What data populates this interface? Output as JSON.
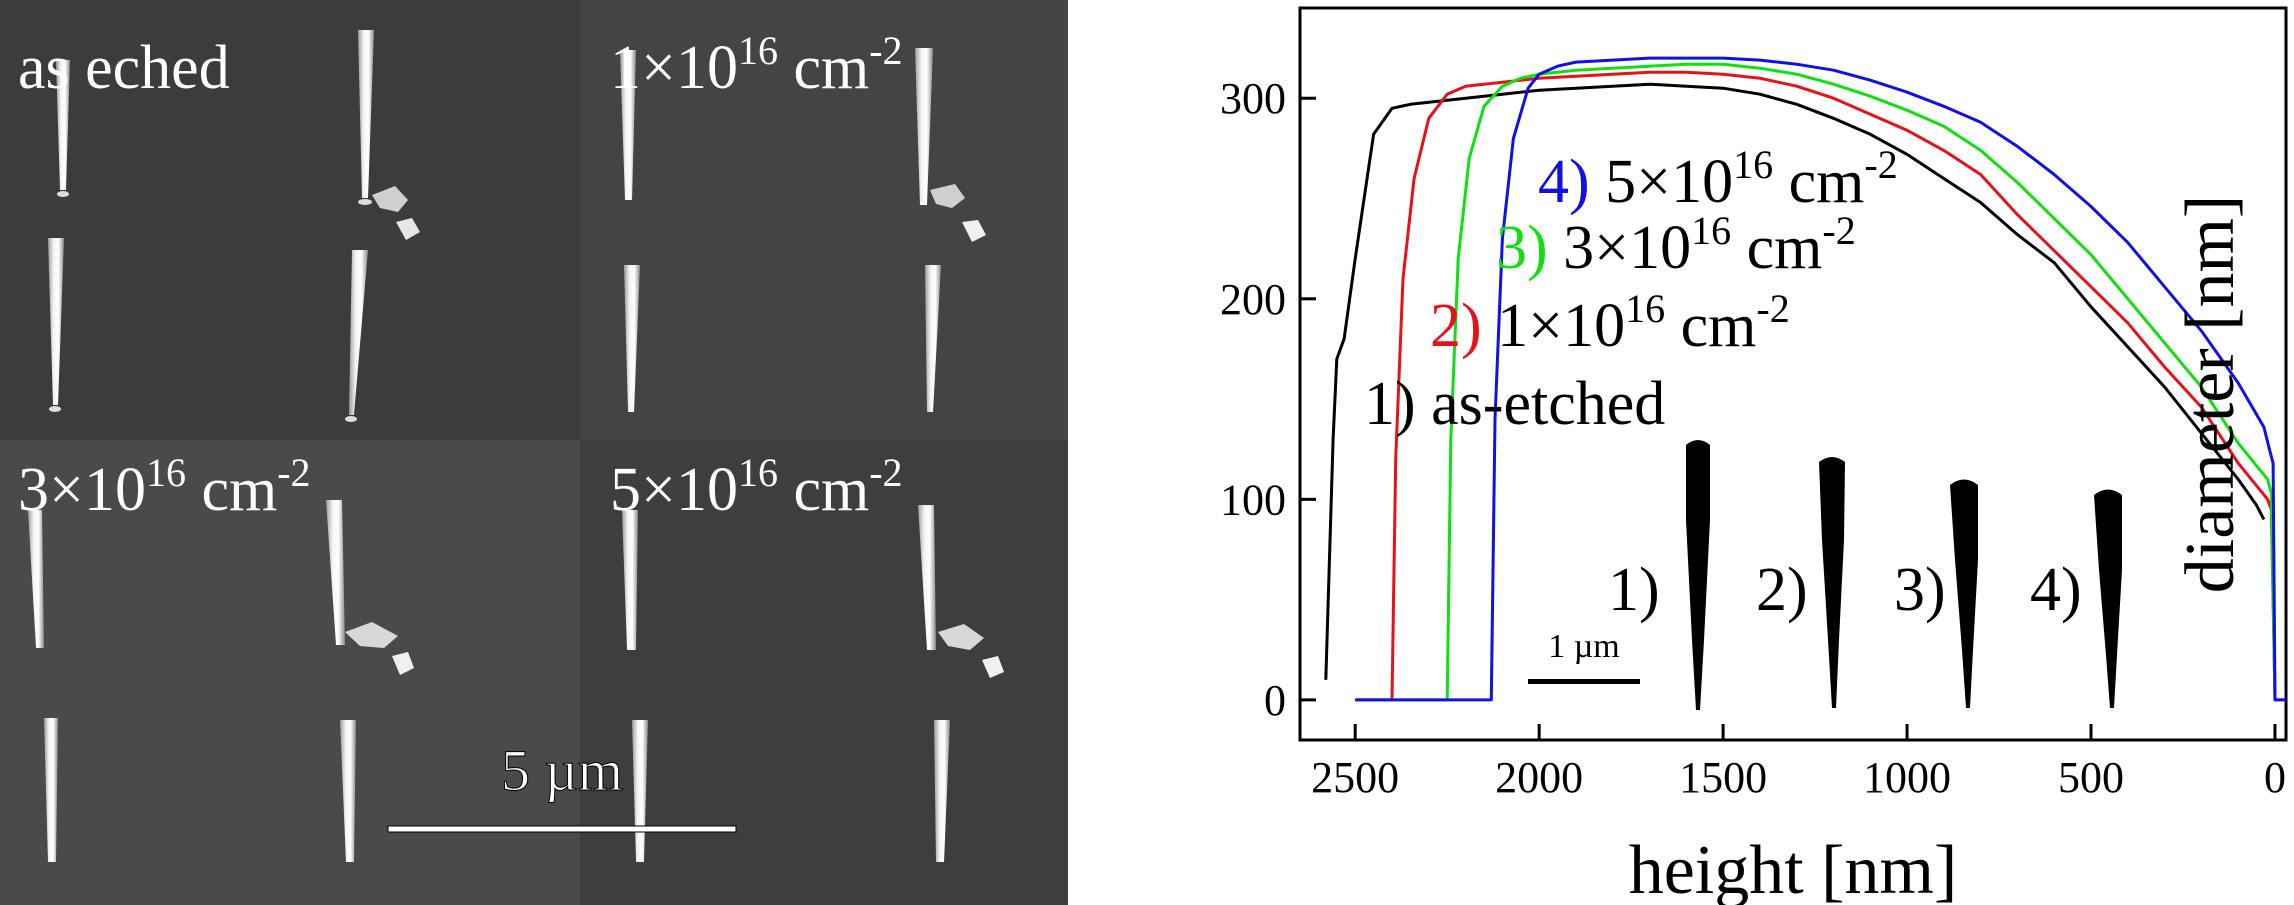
{
  "sem_panels": {
    "scale_bar_label": "5 µm",
    "panels": [
      {
        "label_main": "as eched",
        "label_sup": ""
      },
      {
        "label_main": "1×10",
        "label_sup": "16",
        "label_unit": " cm",
        "label_unit_sup": "-2"
      },
      {
        "label_main": "3×10",
        "label_sup": "16",
        "label_unit": " cm",
        "label_unit_sup": "-2"
      },
      {
        "label_main": "5×10",
        "label_sup": "16",
        "label_unit": " cm",
        "label_unit_sup": "-2"
      }
    ]
  },
  "chart_data": {
    "type": "line",
    "xlabel": "height [nm]",
    "ylabel": "diameter [nm]",
    "xlim": [
      2650,
      -30
    ],
    "ylim": [
      -20,
      345
    ],
    "x_reversed": true,
    "xticks": [
      2500,
      2000,
      1500,
      1000,
      500,
      0
    ],
    "yticks": [
      0,
      100,
      200,
      300
    ],
    "grid": false,
    "series": [
      {
        "name": "1) as-etched",
        "color": "#000000",
        "label_num": "1)",
        "label_text": " as-etched",
        "x": [
          2580,
          2560,
          2550,
          2530,
          2500,
          2450,
          2400,
          2350,
          2300,
          2200,
          2100,
          2000,
          1900,
          1800,
          1700,
          1600,
          1500,
          1400,
          1300,
          1200,
          1100,
          1000,
          900,
          800,
          700,
          600,
          500,
          400,
          300,
          200,
          100,
          50,
          30
        ],
        "y": [
          10,
          130,
          170,
          180,
          220,
          282,
          295,
          297,
          298,
          300,
          302,
          304,
          305,
          306,
          307,
          306,
          305,
          302,
          297,
          290,
          282,
          272,
          260,
          248,
          232,
          218,
          196,
          176,
          156,
          133,
          110,
          97,
          90
        ]
      },
      {
        "name": "2) 1×10^16 cm^-2",
        "color": "#e8101a",
        "label_num": "2)",
        "label_text": " 1×10",
        "label_sup": "16",
        "label_unit": " cm",
        "label_unit_sup": "-2",
        "x": [
          2500,
          2400,
          2390,
          2370,
          2340,
          2300,
          2250,
          2200,
          2100,
          2000,
          1900,
          1800,
          1700,
          1600,
          1500,
          1400,
          1300,
          1200,
          1100,
          1000,
          900,
          800,
          700,
          600,
          500,
          400,
          300,
          200,
          100,
          20,
          10,
          0,
          -30
        ],
        "y": [
          0,
          0,
          120,
          210,
          260,
          290,
          302,
          306,
          308,
          310,
          311,
          312,
          313,
          313,
          312,
          310,
          306,
          300,
          292,
          284,
          274,
          262,
          242,
          224,
          206,
          188,
          166,
          146,
          118,
          100,
          95,
          0,
          0
        ]
      },
      {
        "name": "3) 3×10^16 cm^-2",
        "color": "#10e010",
        "label_num": "3)",
        "label_text": " 3×10",
        "label_sup": "16",
        "label_unit": " cm",
        "label_unit_sup": "-2",
        "x": [
          2500,
          2250,
          2240,
          2220,
          2190,
          2150,
          2100,
          2050,
          2000,
          1900,
          1800,
          1700,
          1600,
          1500,
          1400,
          1300,
          1200,
          1100,
          1000,
          900,
          800,
          700,
          600,
          500,
          400,
          300,
          200,
          100,
          20,
          10,
          0,
          -30
        ],
        "y": [
          0,
          0,
          130,
          220,
          270,
          296,
          306,
          310,
          312,
          314,
          315,
          316,
          317,
          317,
          315,
          312,
          307,
          301,
          294,
          286,
          274,
          258,
          240,
          222,
          200,
          178,
          156,
          128,
          110,
          103,
          0,
          0
        ]
      },
      {
        "name": "4) 5×10^16 cm^-2",
        "color": "#1010e8",
        "label_num": "4)",
        "label_text": " 5×10",
        "label_sup": "16",
        "label_unit": " cm",
        "label_unit_sup": "-2",
        "x": [
          2500,
          2130,
          2120,
          2100,
          2070,
          2030,
          2000,
          1950,
          1900,
          1800,
          1700,
          1600,
          1500,
          1400,
          1300,
          1200,
          1100,
          1000,
          900,
          800,
          700,
          600,
          500,
          400,
          300,
          200,
          100,
          30,
          15,
          5,
          0,
          -30
        ],
        "y": [
          0,
          0,
          140,
          230,
          280,
          305,
          312,
          316,
          318,
          319,
          320,
          320,
          320,
          319,
          317,
          314,
          309,
          303,
          296,
          288,
          276,
          262,
          246,
          228,
          206,
          184,
          158,
          136,
          125,
          118,
          0,
          0
        ]
      }
    ],
    "inset": {
      "labels": [
        "1)",
        "2)",
        "3)",
        "4)"
      ],
      "scale_bar_label": "1 µm"
    }
  }
}
